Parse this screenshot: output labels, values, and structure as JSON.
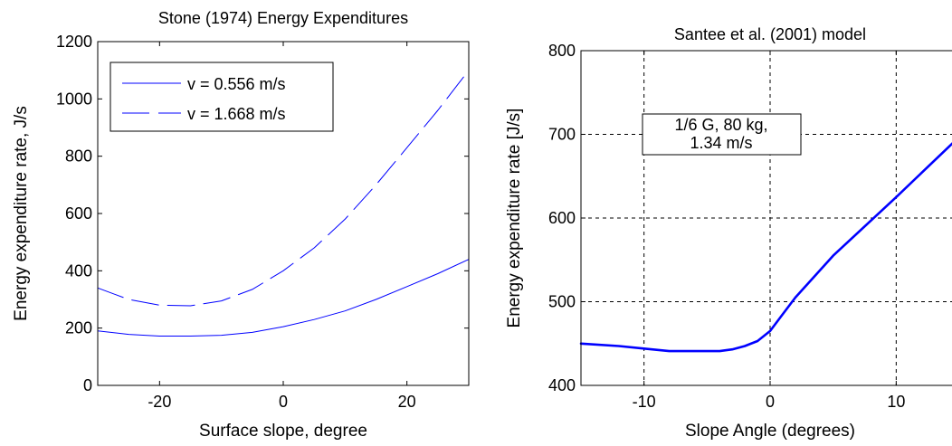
{
  "colors": {
    "series": "#0000ff",
    "axes": "#000000",
    "grid": "#000000",
    "background": "#ffffff"
  },
  "chart_data": [
    {
      "type": "line",
      "title": "Stone (1974) Energy Expenditures",
      "xlabel": "Surface slope, degree",
      "ylabel": "Energy expenditure rate, J/s",
      "xlim": [
        -30,
        30
      ],
      "ylim": [
        0,
        1200
      ],
      "xticks": [
        -20,
        0,
        20
      ],
      "yticks": [
        0,
        200,
        400,
        600,
        800,
        1000,
        1200
      ],
      "xtick_labels": [
        "-20",
        "0",
        "20"
      ],
      "ytick_labels": [
        "0",
        "200",
        "400",
        "600",
        "800",
        "1000",
        "1200"
      ],
      "grid": false,
      "legend": "top-left",
      "x": [
        -30,
        -25,
        -20,
        -15,
        -10,
        -5,
        0,
        5,
        10,
        15,
        20,
        25,
        30
      ],
      "series": [
        {
          "name": "v = 0.556 m/s",
          "style": "solid",
          "values": [
            190,
            178,
            172,
            172,
            175,
            185,
            205,
            230,
            260,
            300,
            345,
            390,
            440
          ]
        },
        {
          "name": "v = 1.668 m/s",
          "style": "dashed",
          "values": [
            340,
            300,
            280,
            278,
            295,
            335,
            400,
            480,
            580,
            700,
            830,
            960,
            1100
          ]
        }
      ]
    },
    {
      "type": "line",
      "title": "Santee et al. (2001) model",
      "xlabel": "Slope Angle (degrees)",
      "ylabel": "Energy expenditure rate [J/s]",
      "xlim": [
        -15,
        15
      ],
      "ylim": [
        400,
        800
      ],
      "xticks": [
        -10,
        0,
        10
      ],
      "yticks": [
        400,
        500,
        600,
        700,
        800
      ],
      "xtick_labels": [
        "-10",
        "0",
        "10"
      ],
      "ytick_labels": [
        "400",
        "500",
        "600",
        "700",
        "800"
      ],
      "grid": true,
      "annotation": [
        "1/6 G, 80 kg,",
        "1.34 m/s"
      ],
      "x": [
        -15,
        -12,
        -10,
        -8,
        -6,
        -4,
        -3,
        -2,
        -1,
        0,
        1,
        2,
        5,
        10,
        15
      ],
      "series": [
        {
          "style": "solid-thick",
          "values": [
            450,
            447,
            444,
            441,
            441,
            441,
            443,
            447,
            453,
            465,
            485,
            505,
            555,
            625,
            697
          ]
        }
      ]
    }
  ]
}
